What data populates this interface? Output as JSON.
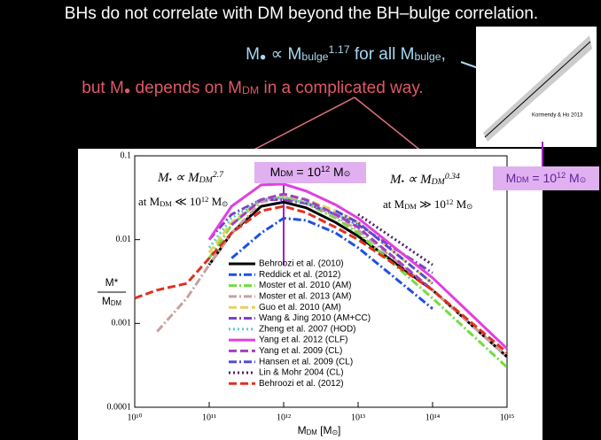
{
  "slide": {
    "title": "BHs do not correlate with DM beyond the BH–bulge correlation.",
    "line1": [
      {
        "text": "M"
      },
      {
        "text": "●",
        "pos": "sub"
      },
      {
        "text": " ∝ M"
      },
      {
        "text": "bulge",
        "pos": "sub"
      },
      {
        "text": "1.17",
        "pos": "sup"
      },
      {
        "text": " for all M"
      },
      {
        "text": "bulge",
        "pos": "sub"
      },
      {
        "text": ","
      }
    ],
    "line2": [
      {
        "text": "but M"
      },
      {
        "text": "●",
        "pos": "sub"
      },
      {
        "text": " depends on M"
      },
      {
        "text": "DM",
        "pos": "sub"
      },
      {
        "text": " in a complicated way."
      }
    ],
    "inset_credit": "Kormendy & Ho 2013",
    "marker_box": [
      {
        "text": "M"
      },
      {
        "text": "DM",
        "pos": "sub"
      },
      {
        "text": " = 10"
      },
      {
        "text": "12",
        "pos": "sup"
      },
      {
        "text": " M"
      },
      {
        "text": "⊙",
        "pos": "sub"
      }
    ]
  },
  "chart_data": {
    "type": "line",
    "xlabel": [
      {
        "text": "M"
      },
      {
        "text": "DM",
        "pos": "sub"
      },
      {
        "text": "  [M"
      },
      {
        "text": "⊙",
        "pos": "sub"
      },
      {
        "text": "]"
      }
    ],
    "ylabel_top": "M*",
    "ylabel_bottom": [
      {
        "text": "M"
      },
      {
        "text": "DM",
        "pos": "sub"
      }
    ],
    "annotations": [
      [
        {
          "text": "M"
        },
        {
          "text": "•",
          "pos": "sub"
        },
        {
          "text": " ∝ M"
        },
        {
          "text": "DM",
          "pos": "sub"
        },
        {
          "text": "2.7",
          "pos": "sup"
        }
      ],
      [
        {
          "text": "at M"
        },
        {
          "text": "DM",
          "pos": "sub"
        },
        {
          "text": " ≪ 10"
        },
        {
          "text": "12",
          "pos": "sup"
        },
        {
          "text": " M"
        },
        {
          "text": "⊙",
          "pos": "sub"
        }
      ],
      [
        {
          "text": "M"
        },
        {
          "text": "•",
          "pos": "sub"
        },
        {
          "text": " ∝ M"
        },
        {
          "text": "DM",
          "pos": "sub"
        },
        {
          "text": "0.34",
          "pos": "sup"
        }
      ],
      [
        {
          "text": "at M"
        },
        {
          "text": "DM",
          "pos": "sub"
        },
        {
          "text": " ≫ 10"
        },
        {
          "text": "12",
          "pos": "sup"
        },
        {
          "text": " M"
        },
        {
          "text": "⊙",
          "pos": "sub"
        }
      ]
    ],
    "marker_box": [
      {
        "text": "M"
      },
      {
        "text": "DM",
        "pos": "sub"
      },
      {
        "text": " = 10"
      },
      {
        "text": "12",
        "pos": "sup"
      },
      {
        "text": " M"
      },
      {
        "text": "⊙",
        "pos": "sub"
      }
    ],
    "xscale": "log",
    "yscale": "log",
    "xlim": [
      10000000000.0,
      1000000000000000.0
    ],
    "ylim": [
      0.0001,
      0.1
    ],
    "xticks": [
      {
        "value": 10000000000.0,
        "label": "10¹⁰"
      },
      {
        "value": 100000000000.0,
        "label": "10¹¹"
      },
      {
        "value": 1000000000000.0,
        "label": "10¹²"
      },
      {
        "value": 10000000000000.0,
        "label": "10¹³"
      },
      {
        "value": 100000000000000.0,
        "label": "10¹⁴"
      },
      {
        "value": 1000000000000000.0,
        "label": "10¹⁵"
      }
    ],
    "yticks": [
      0.0001,
      0.001,
      0.01,
      0.1
    ],
    "x": [
      10000000000.0,
      20000000000.0,
      50000000000.0,
      100000000000.0,
      200000000000.0,
      500000000000.0,
      1000000000000.0,
      2000000000000.0,
      5000000000000.0,
      10000000000000.0,
      100000000000000.0,
      1000000000000000.0
    ],
    "series": [
      {
        "name": "Behroozi et al. (2010)",
        "color": "#000000",
        "dash": "solid",
        "values": [
          null,
          null,
          null,
          0.005,
          0.012,
          0.025,
          0.028,
          0.024,
          0.016,
          0.011,
          0.0025,
          0.0004
        ]
      },
      {
        "name": "Reddick et al. (2012)",
        "color": "#1e50e0",
        "dash": "dashdot",
        "values": [
          null,
          null,
          null,
          null,
          0.006,
          0.012,
          0.018,
          0.017,
          0.012,
          0.008,
          0.0015,
          null
        ]
      },
      {
        "name": "Moster et al. 2010 (AM)",
        "color": "#70dd40",
        "dash": "dashdot",
        "values": [
          null,
          null,
          null,
          0.006,
          0.015,
          0.03,
          0.032,
          0.027,
          0.018,
          0.012,
          0.002,
          0.0003
        ]
      },
      {
        "name": "Moster et al. 2013 (AM)",
        "color": "#c8a0a0",
        "dash": "dashdot",
        "values": [
          null,
          0.0008,
          0.002,
          0.005,
          0.012,
          0.028,
          0.032,
          0.028,
          0.019,
          0.013,
          0.0025,
          0.0004
        ]
      },
      {
        "name": "Guo et al. 2010 (AM)",
        "color": "#e8d060",
        "dash": "dash",
        "values": [
          null,
          null,
          null,
          0.007,
          0.016,
          0.03,
          0.033,
          0.03,
          0.022,
          0.016,
          0.003,
          null
        ]
      },
      {
        "name": "Wang & Jing 2010 (AM+CC)",
        "color": "#8040c0",
        "dash": "dashdot",
        "values": [
          null,
          null,
          null,
          0.01,
          0.02,
          0.03,
          0.03,
          0.027,
          0.02,
          0.015,
          0.004,
          null
        ]
      },
      {
        "name": "Zheng et al. 2007 (HOD)",
        "color": "#60d0d0",
        "dash": "dot",
        "values": [
          null,
          null,
          null,
          0.008,
          0.018,
          0.03,
          0.032,
          0.028,
          0.02,
          0.015,
          null,
          null
        ]
      },
      {
        "name": "Yang et al. 2012 (CLF)",
        "color": "#e040e0",
        "dash": "solid",
        "values": [
          null,
          null,
          null,
          0.01,
          0.025,
          0.045,
          0.046,
          0.038,
          0.026,
          0.018,
          0.0035,
          0.0005
        ]
      },
      {
        "name": "Yang et al. 2009 (CL)",
        "color": "#a040c0",
        "dash": "dash",
        "values": [
          null,
          null,
          null,
          null,
          0.015,
          0.03,
          0.035,
          0.03,
          0.02,
          0.014,
          0.0025,
          null
        ]
      },
      {
        "name": "Hansen et al. 2009 (CL)",
        "color": "#5050d0",
        "dash": "dashdot",
        "values": [
          null,
          null,
          null,
          null,
          null,
          null,
          null,
          null,
          0.022,
          0.016,
          0.003,
          null
        ]
      },
      {
        "name": "Lin & Mohr 2004 (CL)",
        "color": "#502060",
        "dash": "dot",
        "values": [
          null,
          null,
          null,
          null,
          null,
          null,
          null,
          null,
          null,
          0.02,
          0.005,
          null
        ]
      },
      {
        "name": "Behroozi et al. (2012)",
        "color": "#e03020",
        "dash": "dash",
        "values": [
          0.002,
          0.0025,
          0.003,
          0.006,
          0.012,
          0.022,
          0.025,
          0.021,
          0.014,
          0.01,
          0.0025,
          0.00045
        ]
      }
    ],
    "legend": "center"
  }
}
